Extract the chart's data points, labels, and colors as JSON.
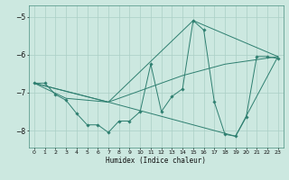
{
  "xlabel": "Humidex (Indice chaleur)",
  "ylabel": "",
  "background_color": "#cce8e0",
  "line_color": "#2e7f70",
  "grid_color": "#aacfc5",
  "xlim": [
    -0.5,
    23.5
  ],
  "ylim": [
    -8.45,
    -4.7
  ],
  "yticks": [
    -8,
    -7,
    -6,
    -5
  ],
  "xticks": [
    0,
    1,
    2,
    3,
    4,
    5,
    6,
    7,
    8,
    9,
    10,
    11,
    12,
    13,
    14,
    15,
    16,
    17,
    18,
    19,
    20,
    21,
    22,
    23
  ],
  "series": [
    [
      0,
      -6.75
    ],
    [
      1,
      -6.75
    ],
    [
      2,
      -7.05
    ],
    [
      3,
      -7.2
    ],
    [
      4,
      -7.55
    ],
    [
      5,
      -7.85
    ],
    [
      6,
      -7.85
    ],
    [
      7,
      -8.05
    ],
    [
      8,
      -7.75
    ],
    [
      9,
      -7.75
    ],
    [
      10,
      -7.5
    ],
    [
      11,
      -6.25
    ],
    [
      12,
      -7.5
    ],
    [
      13,
      -7.1
    ],
    [
      14,
      -6.9
    ],
    [
      15,
      -5.1
    ],
    [
      16,
      -5.35
    ],
    [
      17,
      -7.25
    ],
    [
      18,
      -8.1
    ],
    [
      19,
      -8.15
    ],
    [
      20,
      -7.65
    ],
    [
      21,
      -6.05
    ],
    [
      22,
      -6.05
    ],
    [
      23,
      -6.1
    ]
  ],
  "line2": [
    [
      0,
      -6.75
    ],
    [
      3,
      -7.15
    ],
    [
      7,
      -7.25
    ],
    [
      14,
      -6.55
    ],
    [
      18,
      -6.25
    ],
    [
      23,
      -6.05
    ]
  ],
  "line3": [
    [
      0,
      -6.75
    ],
    [
      7,
      -7.25
    ],
    [
      15,
      -5.1
    ],
    [
      23,
      -6.05
    ]
  ],
  "line4": [
    [
      0,
      -6.75
    ],
    [
      7,
      -7.25
    ],
    [
      19,
      -8.15
    ],
    [
      23,
      -6.05
    ]
  ]
}
